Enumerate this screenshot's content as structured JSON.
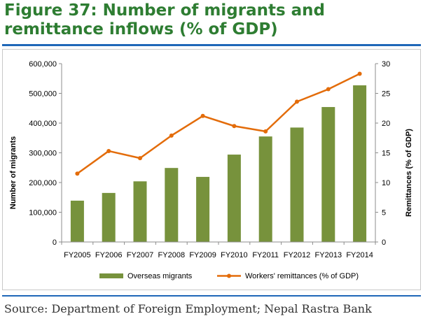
{
  "figure": {
    "title": "Figure 37: Number of migrants and remittance inflows (% of GDP)",
    "source": "Source: Department of Foreign Employment; Nepal Rastra Bank"
  },
  "colors": {
    "title": "#2e7d32",
    "bars": "#77923c",
    "line": "#e36c0a",
    "rule": "#1f67b8",
    "axis": "#8c8c8c"
  },
  "chart_data": {
    "type": "bar",
    "title": "",
    "categories": [
      "FY2005",
      "FY2006",
      "FY2007",
      "FY2008",
      "FY2009",
      "FY2010",
      "FY2011",
      "FY2012",
      "FY2013",
      "FY2014"
    ],
    "series": [
      {
        "name": "Overseas migrants",
        "type": "bar",
        "axis": "left",
        "values": [
          139000,
          165000,
          204000,
          249000,
          219000,
          294000,
          355000,
          385000,
          454000,
          527000
        ]
      },
      {
        "name": "Workers' remittances (% of GDP)",
        "type": "line",
        "axis": "right",
        "values": [
          11.5,
          15.3,
          14.1,
          17.9,
          21.2,
          19.5,
          18.6,
          23.6,
          25.7,
          28.3
        ]
      }
    ],
    "ylabel": "Number of migrants",
    "ylabel_right": "Remittances (% of GDP)",
    "ylim": [
      0,
      600000
    ],
    "ylim_right": [
      0,
      30
    ],
    "yticks": [
      "0",
      "100,000",
      "200,000",
      "300,000",
      "400,000",
      "500,000",
      "600,000"
    ],
    "yticks_right": [
      "0",
      "5",
      "10",
      "15",
      "20",
      "25",
      "30"
    ],
    "legend_position": "bottom",
    "grid": false
  }
}
